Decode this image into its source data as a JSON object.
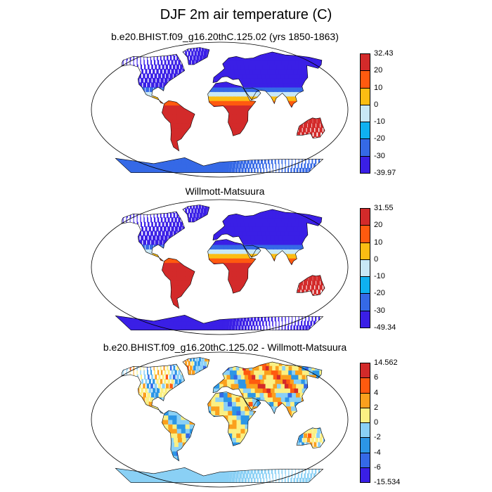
{
  "title": "DJF 2m air temperature (C)",
  "colors": {
    "abs": [
      "#3a1fe6",
      "#3569e6",
      "#0fb1f0",
      "#c8e8f6",
      "#fbbd13",
      "#ff5a0f",
      "#d32a2a"
    ],
    "diff": [
      "#3a1fe6",
      "#3569e6",
      "#2c96e6",
      "#8ad0f5",
      "#fbf083",
      "#fba01d",
      "#ff5a0f",
      "#d32a2a"
    ]
  },
  "chart_data": [
    {
      "type": "heatmap",
      "title": "b.e20.BHIST.f09_g16.20thC.125.02 (yrs 1850-1863)",
      "colorbar": {
        "labels": [
          "32.43",
          "20",
          "10",
          "0",
          "-10",
          "-20",
          "-30",
          "-39.97"
        ],
        "min": -39.97,
        "max": 32.43,
        "levels": [
          -30,
          -20,
          -10,
          0,
          10,
          20
        ]
      }
    },
    {
      "type": "heatmap",
      "title": "Willmott-Matsuura",
      "colorbar": {
        "labels": [
          "31.55",
          "20",
          "10",
          "0",
          "-10",
          "-20",
          "-30",
          "-49.34"
        ],
        "min": -49.34,
        "max": 31.55,
        "levels": [
          -30,
          -20,
          -10,
          0,
          10,
          20
        ]
      }
    },
    {
      "type": "heatmap",
      "title": "b.e20.BHIST.f09_g16.20thC.125.02 - Willmott-Matsuura",
      "colorbar": {
        "labels": [
          "14.562",
          "6",
          "4",
          "2",
          "0",
          "-2",
          "-4",
          "-6",
          "-15.534"
        ],
        "min": -15.534,
        "max": 14.562,
        "levels": [
          -6,
          -4,
          -2,
          0,
          2,
          4,
          6
        ]
      }
    }
  ]
}
